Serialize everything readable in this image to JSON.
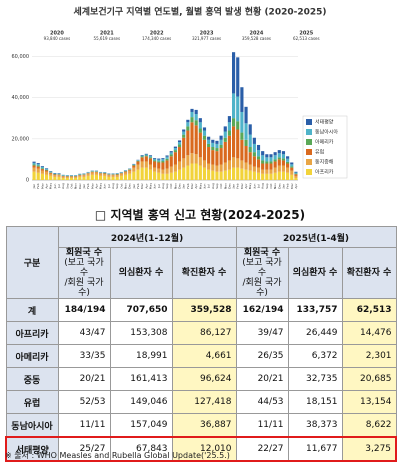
{
  "chart_data": {
    "type": "bar",
    "stacked": true,
    "title": "세계보건기구 지역별 연도별, 월별 홍역 발생 현황 (2020-2025)",
    "year_labels": [
      {
        "year": "2020",
        "cases": "93,840 cases"
      },
      {
        "year": "2021",
        "cases": "55,619 cases"
      },
      {
        "year": "2022",
        "cases": "174,340 cases"
      },
      {
        "year": "2023",
        "cases": "321,977 cases"
      },
      {
        "year": "2024",
        "cases": "359,528 cases"
      },
      {
        "year": "2025",
        "cases": "62,513 cases"
      }
    ],
    "categories": [
      "Jan",
      "Feb",
      "Mar",
      "Apr",
      "May",
      "Jun",
      "Jul",
      "Aug",
      "Sep",
      "Oct",
      "Nov",
      "Dec",
      "Jan",
      "Feb",
      "Mar",
      "Apr",
      "May",
      "Jun",
      "Jul",
      "Aug",
      "Sep",
      "Oct",
      "Nov",
      "Dec",
      "Jan",
      "Feb",
      "Mar",
      "Apr",
      "May",
      "Jun",
      "Jul",
      "Aug",
      "Sep",
      "Oct",
      "Nov",
      "Dec",
      "Jan",
      "Feb",
      "Mar",
      "Apr",
      "May",
      "Jun",
      "Jul",
      "Aug",
      "Sep",
      "Oct",
      "Nov",
      "Dec",
      "Jan",
      "Feb",
      "Mar",
      "Apr",
      "May",
      "Jun",
      "Jul",
      "Aug",
      "Sep",
      "Oct",
      "Nov",
      "Dec",
      "Jan",
      "Feb",
      "Mar",
      "Apr"
    ],
    "series": [
      {
        "name": "아프리카",
        "color": "#f2d33a",
        "values": [
          4000,
          3500,
          3000,
          2500,
          2000,
          1500,
          1500,
          1000,
          1000,
          1000,
          1000,
          1500,
          1500,
          2000,
          2500,
          2500,
          2000,
          2000,
          1500,
          1500,
          1500,
          2000,
          2500,
          3000,
          4000,
          5000,
          6000,
          6000,
          5000,
          4000,
          3500,
          3000,
          3000,
          3500,
          4000,
          5000,
          6000,
          7000,
          8000,
          8000,
          7000,
          6000,
          5000,
          4500,
          4000,
          4000,
          4500,
          5000,
          6000,
          6000,
          5500,
          5000,
          4500,
          4000,
          3500,
          3000,
          3000,
          3000,
          3500,
          4000,
          4000,
          3500,
          2500,
          1000
        ]
      },
      {
        "name": "동지중해",
        "color": "#e9a545",
        "values": [
          2000,
          2000,
          1500,
          1500,
          1000,
          800,
          800,
          600,
          500,
          500,
          500,
          600,
          800,
          1000,
          1200,
          1200,
          1000,
          900,
          800,
          800,
          900,
          1000,
          1200,
          1500,
          2000,
          2500,
          3000,
          3000,
          2500,
          2000,
          2000,
          2000,
          2500,
          3000,
          3500,
          4000,
          4500,
          5000,
          5000,
          4500,
          4000,
          3500,
          3000,
          3000,
          3000,
          3500,
          4000,
          4500,
          5000,
          4500,
          4000,
          3500,
          3000,
          2500,
          2500,
          2000,
          2000,
          2000,
          2500,
          3000,
          3000,
          2500,
          2000,
          1000
        ]
      },
      {
        "name": "유럽",
        "color": "#d9691e",
        "values": [
          1000,
          1000,
          800,
          600,
          500,
          400,
          300,
          300,
          300,
          300,
          300,
          300,
          300,
          300,
          300,
          300,
          300,
          300,
          300,
          300,
          300,
          300,
          400,
          500,
          1000,
          1500,
          2000,
          2500,
          3000,
          3000,
          3000,
          3500,
          4000,
          5000,
          6000,
          7000,
          10000,
          12000,
          15000,
          14000,
          12000,
          10000,
          8000,
          7000,
          7000,
          8000,
          10000,
          12000,
          15000,
          14000,
          10000,
          8000,
          6000,
          5000,
          4000,
          3000,
          3000,
          3000,
          3000,
          3000,
          2500,
          2000,
          1500,
          800
        ]
      },
      {
        "name": "아메리카",
        "color": "#5aa857",
        "values": [
          500,
          500,
          400,
          300,
          200,
          200,
          200,
          200,
          200,
          200,
          200,
          200,
          200,
          200,
          200,
          200,
          200,
          200,
          200,
          200,
          200,
          200,
          200,
          200,
          300,
          300,
          400,
          400,
          500,
          500,
          600,
          700,
          800,
          900,
          1000,
          1200,
          1500,
          2000,
          2500,
          2500,
          2000,
          2000,
          1500,
          1500,
          1500,
          1500,
          2000,
          2500,
          4000,
          4000,
          3500,
          3000,
          2500,
          2000,
          1500,
          1500,
          1000,
          1000,
          1000,
          1000,
          1000,
          800,
          600,
          300
        ]
      },
      {
        "name": "동남아시아",
        "color": "#4fb3c9",
        "values": [
          800,
          700,
          600,
          500,
          400,
          300,
          300,
          300,
          300,
          300,
          300,
          300,
          300,
          300,
          300,
          300,
          300,
          300,
          300,
          300,
          300,
          300,
          300,
          300,
          300,
          300,
          400,
          500,
          600,
          700,
          800,
          900,
          1000,
          1000,
          1000,
          1200,
          1500,
          2000,
          2500,
          3000,
          3000,
          2500,
          2000,
          2000,
          2000,
          2500,
          3000,
          4000,
          12000,
          12000,
          10000,
          8000,
          6000,
          4000,
          3000,
          2500,
          2000,
          2000,
          2000,
          2000,
          2000,
          1500,
          1000,
          500
        ]
      },
      {
        "name": "서태평양",
        "color": "#2a5ea8",
        "values": [
          600,
          500,
          400,
          300,
          200,
          200,
          200,
          100,
          100,
          100,
          100,
          100,
          100,
          100,
          100,
          100,
          100,
          100,
          100,
          100,
          100,
          100,
          100,
          100,
          200,
          200,
          300,
          300,
          400,
          400,
          500,
          500,
          600,
          600,
          700,
          800,
          1000,
          1200,
          1500,
          2000,
          2000,
          1500,
          1500,
          1500,
          1500,
          2000,
          2500,
          3000,
          20000,
          19000,
          12000,
          8000,
          5000,
          3000,
          2500,
          2000,
          1500,
          1500,
          1500,
          1500,
          1500,
          1200,
          900,
          400
        ]
      }
    ],
    "ylim": [
      0,
      65000
    ],
    "yticks": [
      0,
      {
        "value": 20000,
        "label": "20,000"
      },
      {
        "value": 40000,
        "label": "40,000"
      },
      {
        "value": 60000,
        "label": "60,000"
      }
    ],
    "grid": true
  },
  "table": {
    "title": "□ 지역별 홍역 신고 현황(2024-2025)",
    "corner": "구분",
    "groups": [
      "2024년(1-12월)",
      "2025년(1-4월)"
    ],
    "subheaders": [
      [
        [
          "회원국 수",
          "(보고 국가 수",
          "/회원 국가 수)"
        ],
        [
          "의심환자 수"
        ],
        [
          "확진환자 수"
        ]
      ],
      [
        [
          "회원국 수",
          "(보고 국가 수",
          "/회원 국가 수)"
        ],
        [
          "의심환자 수"
        ],
        [
          "확진환자 수"
        ]
      ]
    ],
    "rows": [
      [
        "계",
        "184/194",
        "707,650",
        "359,528",
        "162/194",
        "133,757",
        "62,513"
      ],
      [
        "아프리카",
        "43/47",
        "153,308",
        "86,127",
        "39/47",
        "26,449",
        "14,476"
      ],
      [
        "아메리카",
        "33/35",
        "18,991",
        "4,661",
        "26/35",
        "6,372",
        "2,301"
      ],
      [
        "중동",
        "20/21",
        "161,413",
        "96,624",
        "20/21",
        "32,735",
        "20,685"
      ],
      [
        "유럽",
        "52/53",
        "149,046",
        "127,418",
        "44/53",
        "18,151",
        "13,154"
      ],
      [
        "동남아시아",
        "11/11",
        "157,049",
        "36,887",
        "11/11",
        "38,373",
        "8,622"
      ],
      [
        "서태평양",
        "25/27",
        "67,843",
        "12,010",
        "22/27",
        "11,677",
        "3,275"
      ]
    ]
  },
  "footnote": "※ 출처 : WHO Measles and Rubella Global Update('25.5.)"
}
